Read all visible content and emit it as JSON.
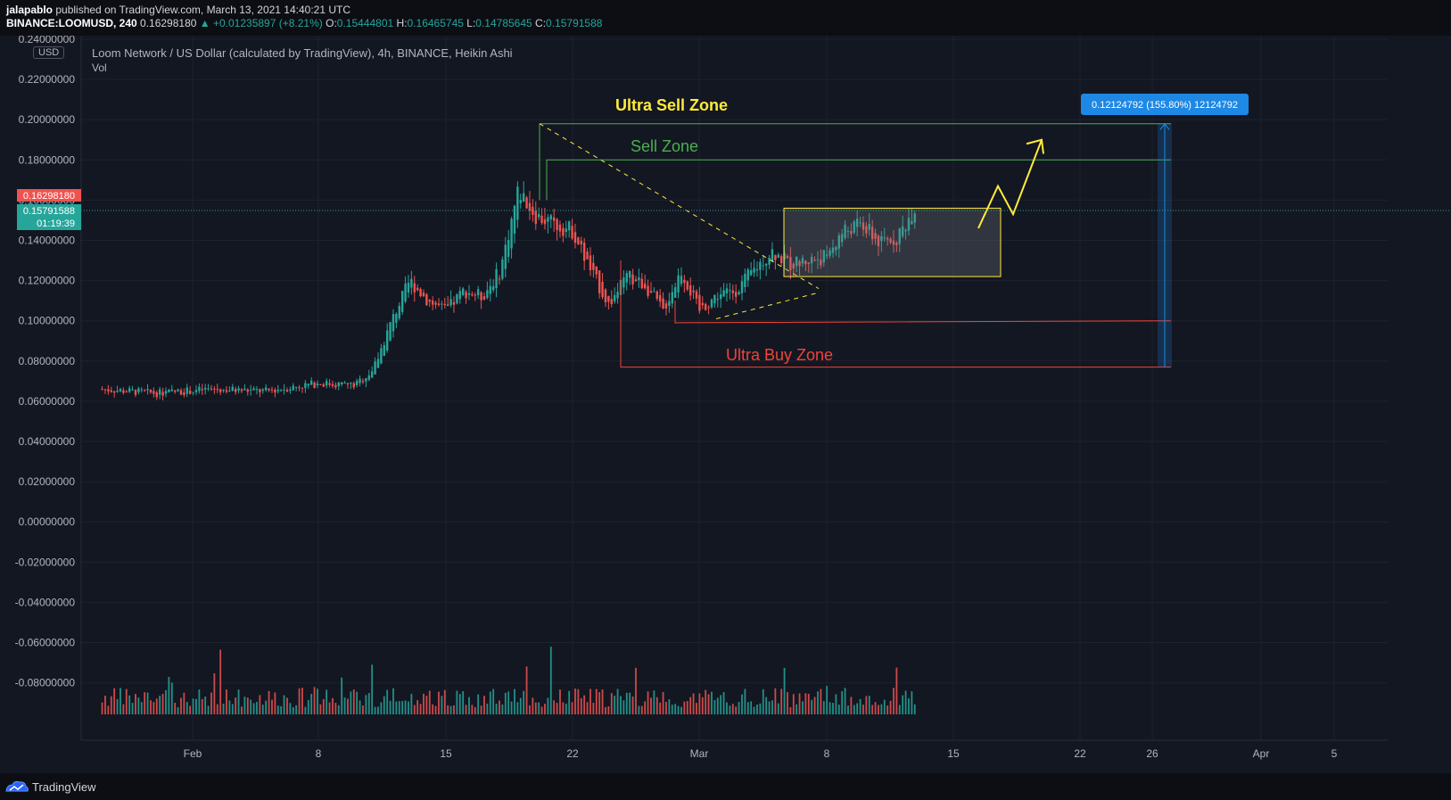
{
  "header": {
    "author": "jalapablo",
    "published": "published on TradingView.com, March 13, 2021 14:40:21 UTC",
    "symbol": "BINANCE:LOOMUSD, 240",
    "price": "0.16298180",
    "change": "▲ +0.01235897 (+8.21%)",
    "o_label": "O:",
    "o_value": "0.15444801",
    "h_label": "H:",
    "h_value": "0.16465745",
    "l_label": "L:",
    "l_value": "0.14785645",
    "c_label": "C:",
    "c_value": "0.15791588"
  },
  "legend": {
    "title": "Loom Network / US Dollar (calculated by TradingView), 4h, BINANCE, Heikin Ashi",
    "vol": "Vol",
    "currency": "USD"
  },
  "price_tags": {
    "last": "0.16298180",
    "close": "0.15791588",
    "countdown": "01:19:39"
  },
  "annotations": {
    "ultra_sell": "Ultra Sell Zone",
    "sell": "Sell Zone",
    "ultra_buy": "Ultra Buy Zone",
    "measure": "0.12124792 (155.80%) 12124792"
  },
  "footer": {
    "brand": "TradingView"
  },
  "colors": {
    "background": "#131722",
    "up": "#26a69a",
    "down": "#ef5350",
    "ultra_sell": "#ffeb3b",
    "sell": "#4caf50",
    "ultra_buy": "#f44336",
    "measure": "#1e88e5"
  },
  "chart_data": {
    "type": "candlestick",
    "title": "Loom Network / US Dollar (calculated by TradingView), 4h, BINANCE, Heikin Ashi",
    "y_ticks": [
      "0.24000000",
      "0.22000000",
      "0.20000000",
      "0.18000000",
      "0.16000000",
      "0.14000000",
      "0.12000000",
      "0.10000000",
      "0.08000000",
      "0.06000000",
      "0.04000000",
      "0.02000000",
      "0.00000000",
      "-0.02000000",
      "-0.04000000",
      "-0.06000000",
      "-0.08000000"
    ],
    "x_ticks": [
      "Feb",
      "8",
      "15",
      "22",
      "Mar",
      "8",
      "15",
      "22",
      "26",
      "Apr",
      "5"
    ],
    "ylim": [
      -0.092,
      0.245
    ],
    "price_path": [
      {
        "x": "Jan 27",
        "y": 0.066
      },
      {
        "x": "Jan 30",
        "y": 0.064
      },
      {
        "x": "Feb 2",
        "y": 0.066
      },
      {
        "x": "Feb 5",
        "y": 0.065
      },
      {
        "x": "Feb 8",
        "y": 0.069
      },
      {
        "x": "Feb 10",
        "y": 0.068
      },
      {
        "x": "Feb 11",
        "y": 0.076
      },
      {
        "x": "Feb 12",
        "y": 0.1
      },
      {
        "x": "Feb 13",
        "y": 0.12
      },
      {
        "x": "Feb 14",
        "y": 0.11
      },
      {
        "x": "Feb 15",
        "y": 0.105
      },
      {
        "x": "Feb 16",
        "y": 0.115
      },
      {
        "x": "Feb 17",
        "y": 0.112
      },
      {
        "x": "Feb 18",
        "y": 0.125
      },
      {
        "x": "Feb 19",
        "y": 0.165
      },
      {
        "x": "Feb 20",
        "y": 0.152
      },
      {
        "x": "Feb 21",
        "y": 0.148
      },
      {
        "x": "Feb 22",
        "y": 0.145
      },
      {
        "x": "Feb 23",
        "y": 0.125
      },
      {
        "x": "Feb 24",
        "y": 0.108
      },
      {
        "x": "Feb 25",
        "y": 0.122
      },
      {
        "x": "Feb 26",
        "y": 0.118
      },
      {
        "x": "Feb 27",
        "y": 0.105
      },
      {
        "x": "Feb 28",
        "y": 0.125
      },
      {
        "x": "Mar 1",
        "y": 0.105
      },
      {
        "x": "Mar 2",
        "y": 0.113
      },
      {
        "x": "Mar 3",
        "y": 0.115
      },
      {
        "x": "Mar 4",
        "y": 0.125
      },
      {
        "x": "Mar 5",
        "y": 0.135
      },
      {
        "x": "Mar 6",
        "y": 0.128
      },
      {
        "x": "Mar 7",
        "y": 0.13
      },
      {
        "x": "Mar 8",
        "y": 0.132
      },
      {
        "x": "Mar 9",
        "y": 0.145
      },
      {
        "x": "Mar 10",
        "y": 0.148
      },
      {
        "x": "Mar 11",
        "y": 0.138
      },
      {
        "x": "Mar 12",
        "y": 0.142
      },
      {
        "x": "Mar 13",
        "y": 0.158
      }
    ],
    "zones": {
      "ultra_sell": 0.198,
      "sell": 0.18,
      "ultra_buy_upper": 0.099,
      "ultra_buy_lower": 0.077,
      "range_box": [
        0.122,
        0.156
      ]
    },
    "grid": true
  }
}
